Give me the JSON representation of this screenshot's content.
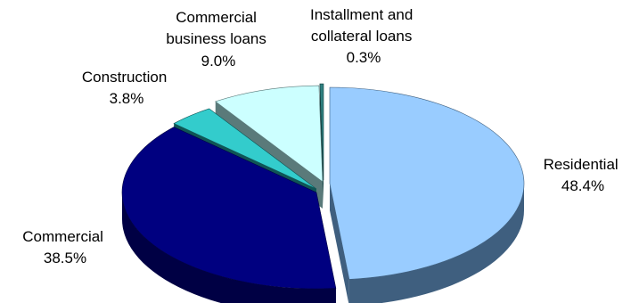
{
  "chart_data": {
    "type": "pie",
    "title": "",
    "style": "3d-exploded",
    "slices": [
      {
        "label": "Residential",
        "value_label": "48.4%",
        "value": 48.4,
        "color": "#99ccff",
        "side_color": "#3f5f7f"
      },
      {
        "label": "Commercial",
        "value_label": "38.5%",
        "value": 38.5,
        "color": "#000080",
        "side_color": "#000044"
      },
      {
        "label": "Construction",
        "value_label": "3.8%",
        "value": 3.8,
        "color": "#33cccc",
        "side_color": "#0f5555"
      },
      {
        "label": "Commercial business loans",
        "value_label": "9.0%",
        "value": 9.0,
        "color": "#ccffff",
        "side_color": "#5a7a7a"
      },
      {
        "label": "Installment and collateral loans",
        "value_label": "0.3%",
        "value": 0.3,
        "color": "#2f7f7f",
        "side_color": "#124040"
      }
    ]
  }
}
